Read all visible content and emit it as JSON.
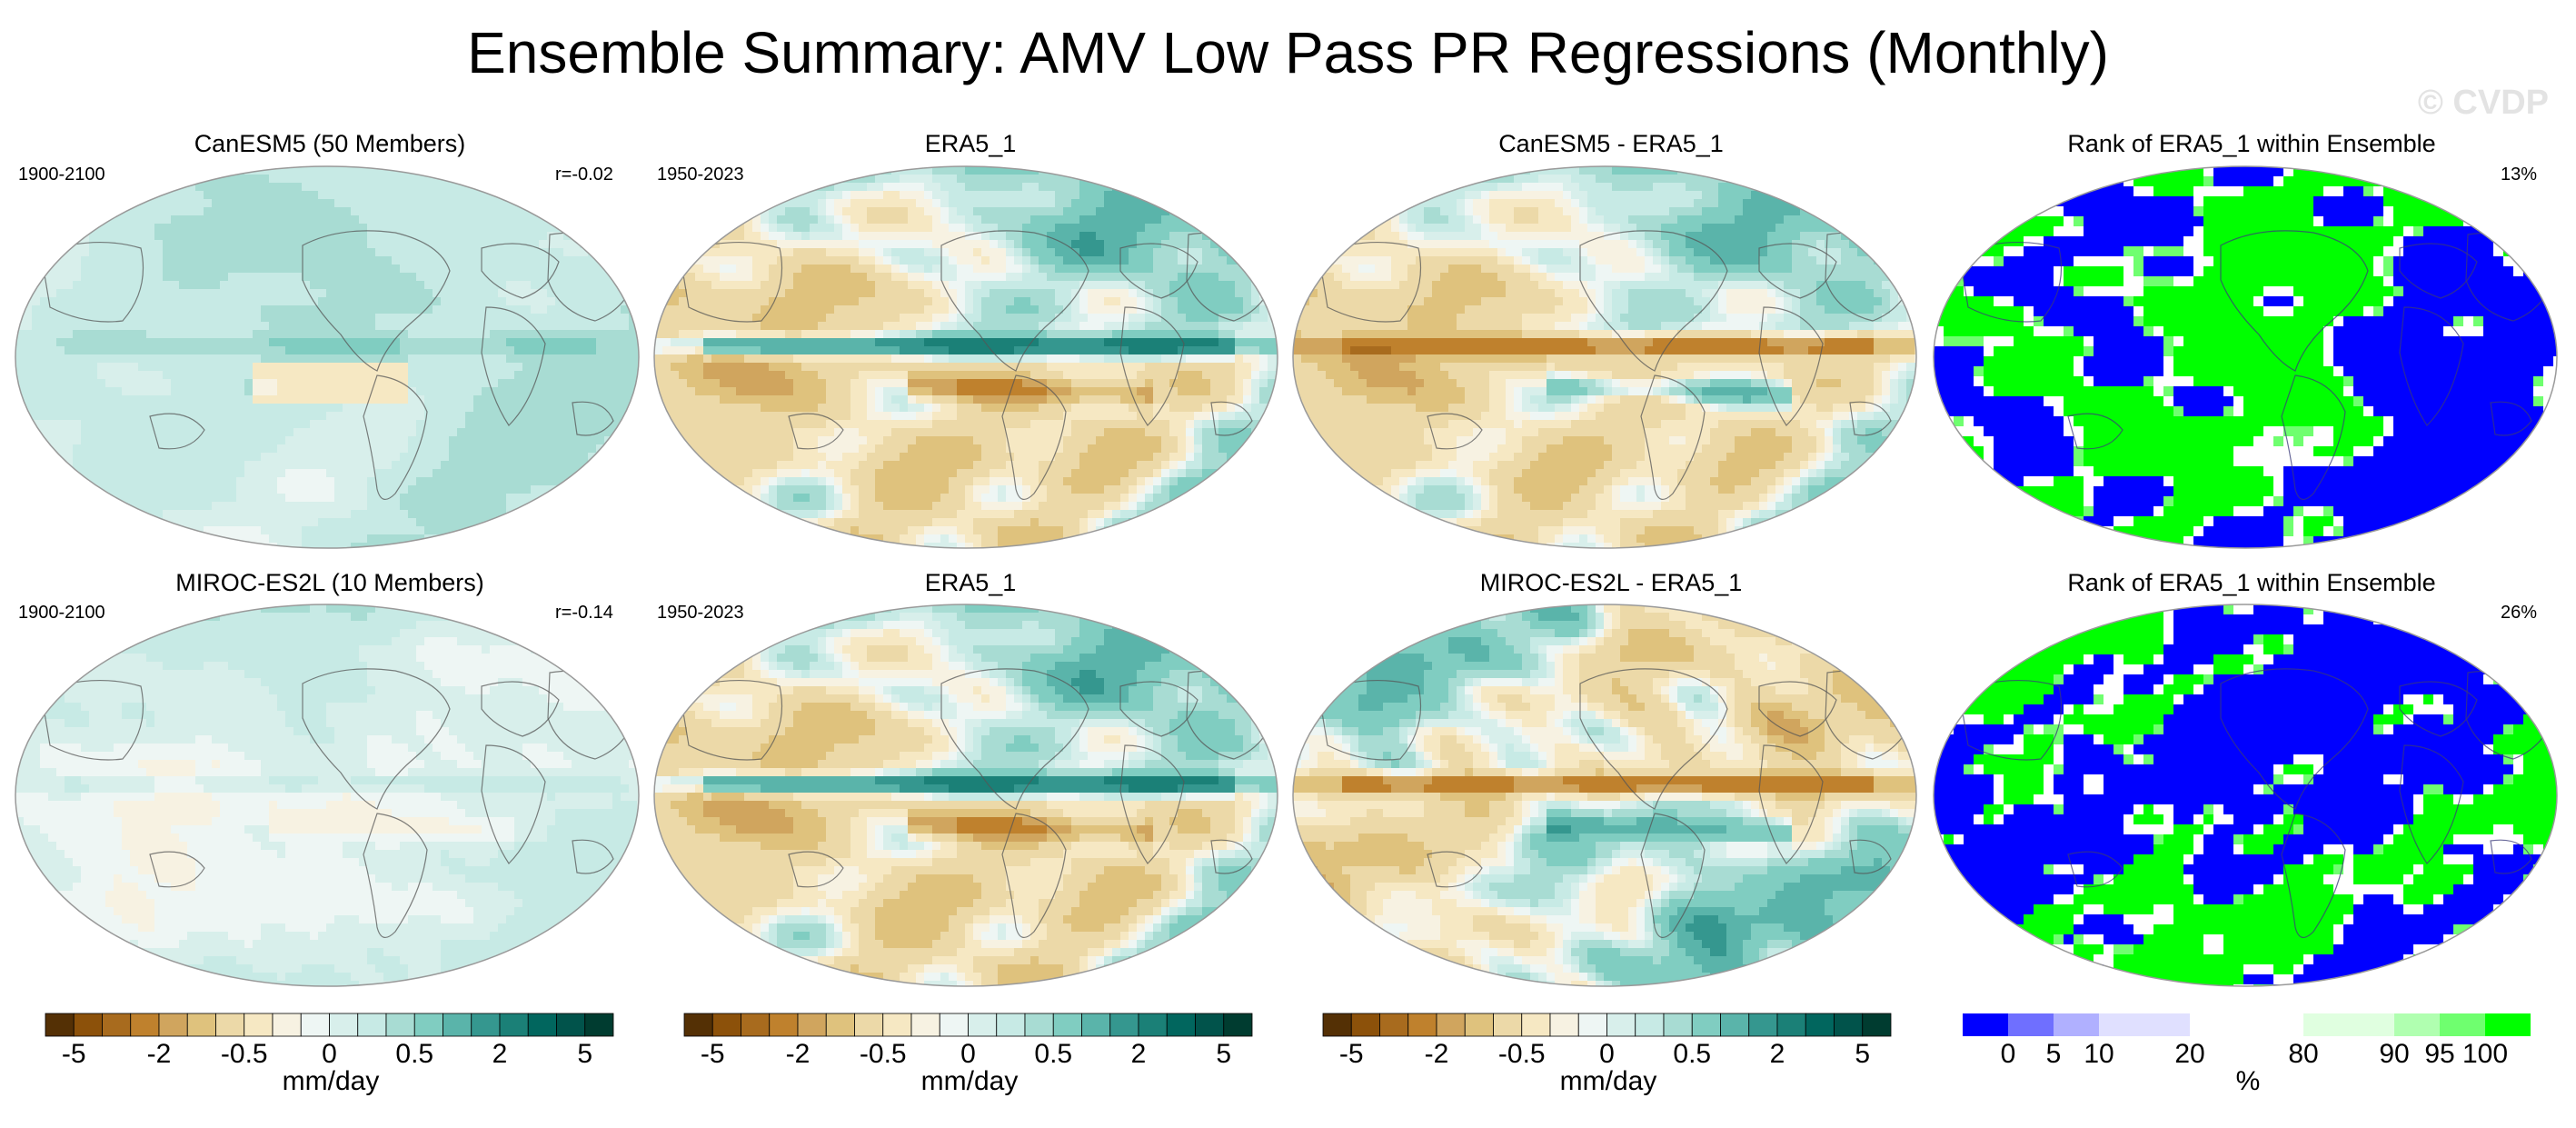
{
  "figure": {
    "title": "Ensemble Summary: AMV Low Pass PR Regressions (Monthly)",
    "watermark": "© CVDP"
  },
  "colors": {
    "brbg": [
      "#543005",
      "#8c510a",
      "#a86b1e",
      "#bf812d",
      "#d0a55e",
      "#dfc27d",
      "#ecd9a8",
      "#f6e8c3",
      "#f7f2e2",
      "#eef6f4",
      "#d8efeb",
      "#c7eae5",
      "#a8dcd3",
      "#80cdc1",
      "#5ab4aa",
      "#35978f",
      "#1b8077",
      "#01665e",
      "#01534b",
      "#003c30"
    ],
    "rank": [
      "#0000ff",
      "#6f6fff",
      "#b0b0ff",
      "#e0e0ff",
      "#ffffff",
      "#e0ffe0",
      "#b0ffb0",
      "#6fff6f",
      "#00ff00"
    ]
  },
  "panels": {
    "row1": {
      "model": {
        "title": "CanESM5 (50 Members)",
        "years": "1900-2100",
        "stat": "r=-0.02"
      },
      "obs": {
        "title": "ERA5_1",
        "years": "1950-2023"
      },
      "diff": {
        "title": "CanESM5 - ERA5_1"
      },
      "rank": {
        "title": "Rank of ERA5_1 within Ensemble",
        "stat": "13%"
      }
    },
    "row2": {
      "model": {
        "title": "MIROC-ES2L (10 Members)",
        "years": "1900-2100",
        "stat": "r=-0.14"
      },
      "obs": {
        "title": "ERA5_1",
        "years": "1950-2023"
      },
      "diff": {
        "title": "MIROC-ES2L - ERA5_1"
      },
      "rank": {
        "title": "Rank of ERA5_1 within Ensemble",
        "stat": "26%"
      }
    }
  },
  "chart_data": [
    {
      "type": "heatmap",
      "name": "regression-colorbar",
      "units": "mm/day",
      "levels": [
        -5,
        -4,
        -3,
        -2,
        -1.5,
        -1,
        -0.5,
        -0.25,
        -0.1,
        0,
        0.1,
        0.25,
        0.5,
        1,
        1.5,
        2,
        3,
        4,
        5
      ],
      "tick_labels": [
        "-5",
        "-2",
        "-0.5",
        "0",
        "0.5",
        "2",
        "5"
      ],
      "tick_levels": [
        -5,
        -2,
        -0.5,
        0,
        0.5,
        2,
        5
      ]
    },
    {
      "type": "heatmap",
      "name": "rank-colorbar",
      "units": "%",
      "levels": [
        0,
        5,
        10,
        20,
        80,
        90,
        95,
        100
      ],
      "tick_labels": [
        "0",
        "5",
        "10",
        "20",
        "80",
        "90",
        "95",
        "100"
      ]
    }
  ]
}
